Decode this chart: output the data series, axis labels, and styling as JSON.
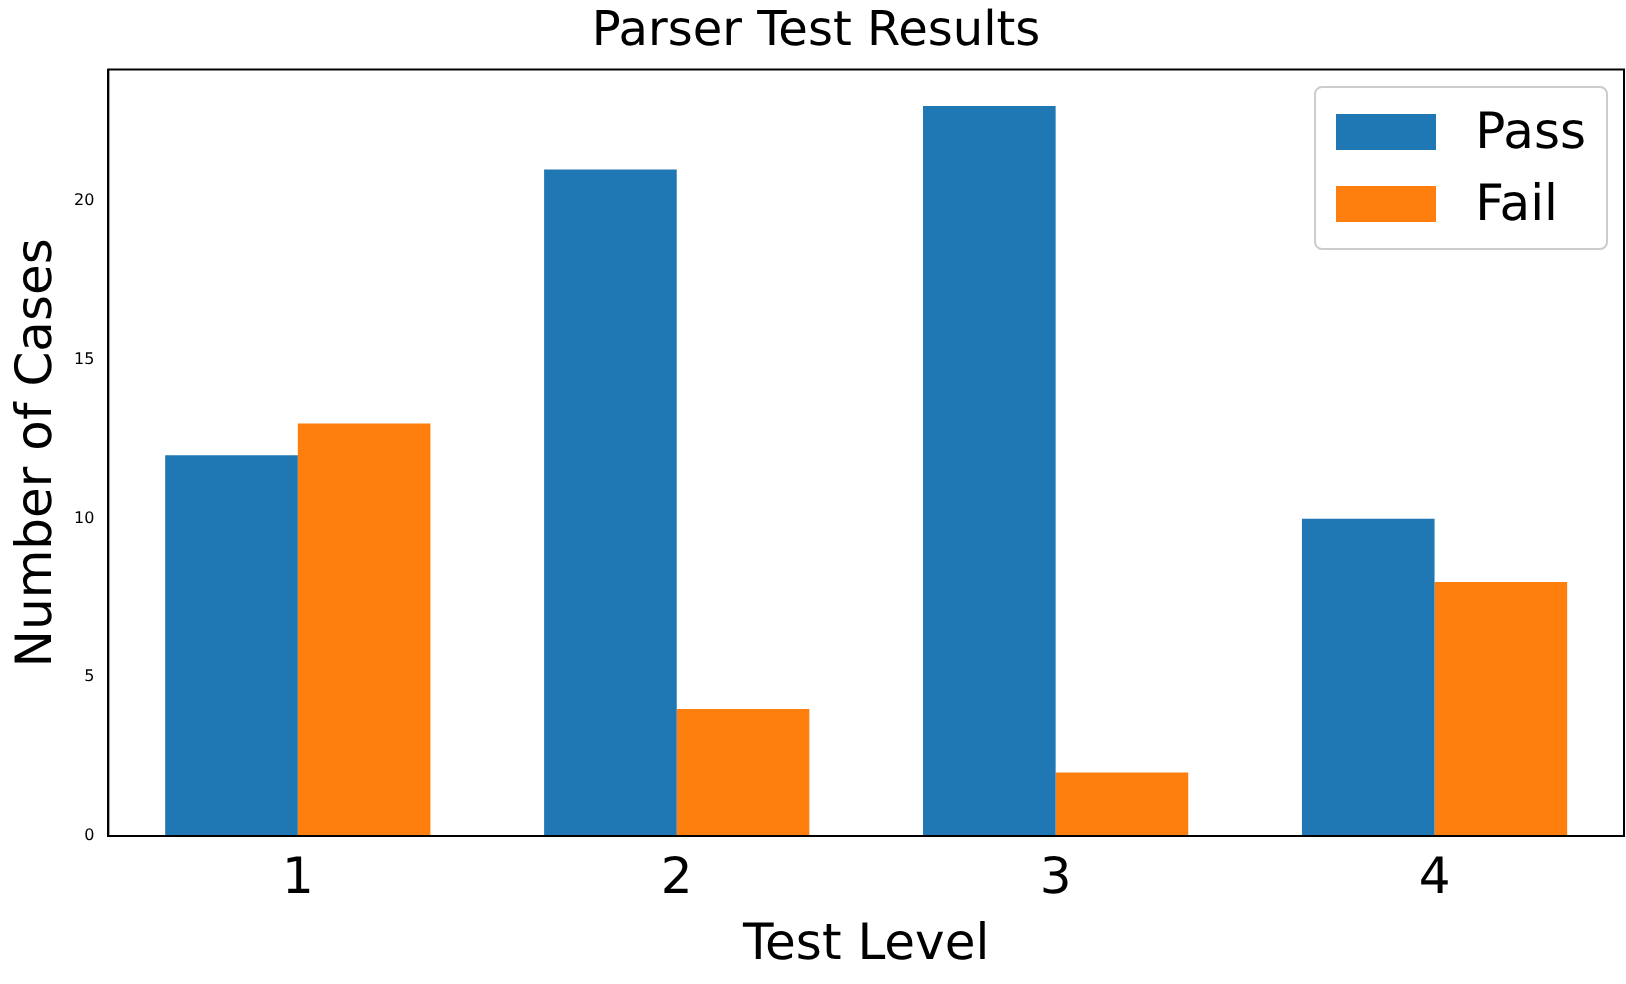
{
  "chart_data": {
    "type": "bar",
    "title": "Parser Test Results",
    "xlabel": "Test Level",
    "ylabel": "Number of Cases",
    "categories": [
      "1",
      "2",
      "3",
      "4"
    ],
    "series": [
      {
        "name": "Pass",
        "color": "#1f77b4",
        "values": [
          12,
          21,
          23,
          10
        ]
      },
      {
        "name": "Fail",
        "color": "#ff7f0e",
        "values": [
          13,
          4,
          2,
          8
        ]
      }
    ],
    "ylim": [
      0,
      24.15
    ],
    "yticks": [
      0,
      5,
      10,
      15,
      20
    ],
    "grid": false,
    "legend": "top right"
  }
}
